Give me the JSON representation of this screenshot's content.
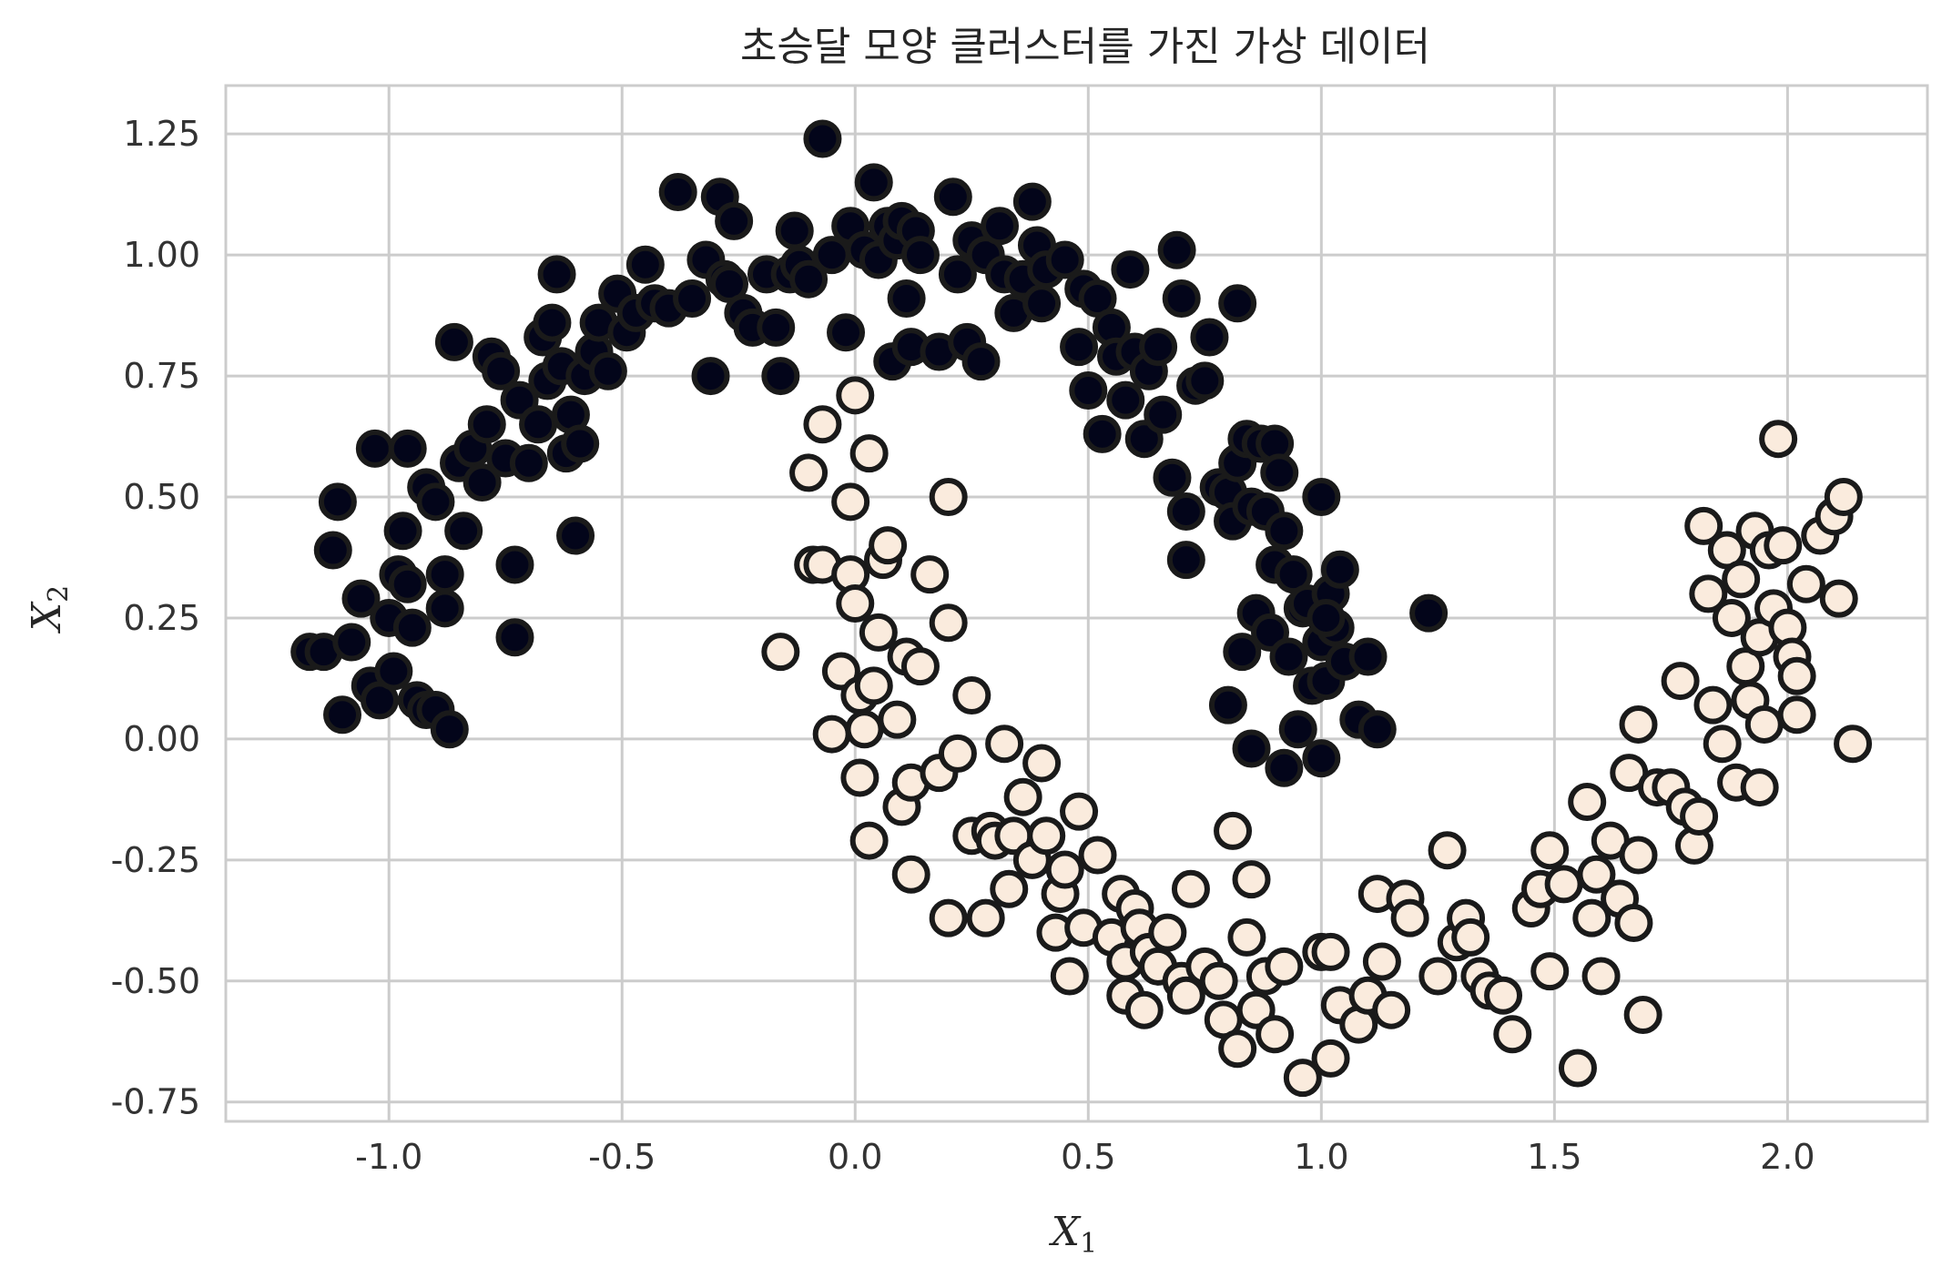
{
  "chart_data": {
    "type": "scatter",
    "title": "초승달 모양 클러스터를 가진 가상 데이터",
    "xlabel": "X",
    "xlabel_sub": "1",
    "ylabel": "X",
    "ylabel_sub": "2",
    "xlim": [
      -1.35,
      2.3
    ],
    "ylim": [
      -0.79,
      1.35
    ],
    "xticks": [
      -1.0,
      -0.5,
      0.0,
      0.5,
      1.0,
      1.5,
      2.0
    ],
    "xtick_labels": [
      "-1.0",
      "-0.5",
      "0.0",
      "0.5",
      "1.0",
      "1.5",
      "2.0"
    ],
    "yticks": [
      -0.75,
      -0.5,
      -0.25,
      0.0,
      0.25,
      0.5,
      0.75,
      1.0,
      1.25
    ],
    "ytick_labels": [
      "-0.75",
      "-0.50",
      "-0.25",
      "0.00",
      "0.25",
      "0.50",
      "0.75",
      "1.00",
      "1.25"
    ],
    "grid": true,
    "colors": {
      "class0_fill": "#03051a",
      "class1_fill": "#faebdd",
      "marker_edge": "#1a1a1a",
      "grid": "#cccccc",
      "spine": "#cccccc"
    },
    "series": [
      {
        "class": 0,
        "points": [
          [
            -1.17,
            0.18
          ],
          [
            -1.14,
            0.18
          ],
          [
            -1.11,
            0.49
          ],
          [
            -1.12,
            0.39
          ],
          [
            -1.1,
            0.05
          ],
          [
            -1.08,
            0.2
          ],
          [
            -1.06,
            0.29
          ],
          [
            -1.04,
            0.11
          ],
          [
            -1.02,
            0.08
          ],
          [
            -1.0,
            0.25
          ],
          [
            -0.99,
            0.14
          ],
          [
            -0.98,
            0.34
          ],
          [
            -0.97,
            0.43
          ],
          [
            -0.96,
            0.32
          ],
          [
            -0.95,
            0.23
          ],
          [
            -0.94,
            0.08
          ],
          [
            -0.92,
            0.06
          ],
          [
            -0.9,
            0.06
          ],
          [
            -0.88,
            0.27
          ],
          [
            -0.87,
            0.02
          ],
          [
            -1.03,
            0.6
          ],
          [
            -0.96,
            0.6
          ],
          [
            -0.92,
            0.52
          ],
          [
            -0.9,
            0.49
          ],
          [
            -0.88,
            0.34
          ],
          [
            -0.86,
            0.82
          ],
          [
            -0.85,
            0.57
          ],
          [
            -0.84,
            0.43
          ],
          [
            -0.82,
            0.6
          ],
          [
            -0.8,
            0.53
          ],
          [
            -0.79,
            0.65
          ],
          [
            -0.78,
            0.79
          ],
          [
            -0.76,
            0.76
          ],
          [
            -0.75,
            0.58
          ],
          [
            -0.73,
            0.36
          ],
          [
            -0.73,
            0.21
          ],
          [
            -0.72,
            0.7
          ],
          [
            -0.7,
            0.57
          ],
          [
            -0.68,
            0.65
          ],
          [
            -0.67,
            0.83
          ],
          [
            -0.66,
            0.74
          ],
          [
            -0.65,
            0.86
          ],
          [
            -0.64,
            0.96
          ],
          [
            -0.63,
            0.77
          ],
          [
            -0.62,
            0.59
          ],
          [
            -0.61,
            0.67
          ],
          [
            -0.6,
            0.42
          ],
          [
            -0.59,
            0.61
          ],
          [
            -0.58,
            0.75
          ],
          [
            -0.56,
            0.8
          ],
          [
            -0.55,
            0.86
          ],
          [
            -0.53,
            0.76
          ],
          [
            -0.51,
            0.92
          ],
          [
            -0.49,
            0.84
          ],
          [
            -0.47,
            0.88
          ],
          [
            -0.45,
            0.98
          ],
          [
            -0.43,
            0.9
          ],
          [
            -0.4,
            0.89
          ],
          [
            -0.38,
            1.13
          ],
          [
            -0.35,
            0.91
          ],
          [
            -0.32,
            0.99
          ],
          [
            -0.31,
            0.75
          ],
          [
            -0.29,
            1.12
          ],
          [
            -0.28,
            0.95
          ],
          [
            -0.27,
            0.94
          ],
          [
            -0.26,
            1.07
          ],
          [
            -0.24,
            0.88
          ],
          [
            -0.22,
            0.85
          ],
          [
            -0.19,
            0.96
          ],
          [
            -0.17,
            0.85
          ],
          [
            -0.16,
            0.75
          ],
          [
            -0.14,
            0.96
          ],
          [
            -0.13,
            1.05
          ],
          [
            -0.12,
            0.98
          ],
          [
            -0.1,
            0.95
          ],
          [
            -0.07,
            1.24
          ],
          [
            -0.05,
            1.0
          ],
          [
            -0.02,
            0.84
          ],
          [
            -0.01,
            1.06
          ],
          [
            0.02,
            1.01
          ],
          [
            0.04,
            1.15
          ],
          [
            0.05,
            0.99
          ],
          [
            0.07,
            1.06
          ],
          [
            0.08,
            0.78
          ],
          [
            0.09,
            1.03
          ],
          [
            0.1,
            1.07
          ],
          [
            0.11,
            0.91
          ],
          [
            0.12,
            0.81
          ],
          [
            0.13,
            1.05
          ],
          [
            0.14,
            1.0
          ],
          [
            0.18,
            0.8
          ],
          [
            0.21,
            1.12
          ],
          [
            0.22,
            0.96
          ],
          [
            0.24,
            0.82
          ],
          [
            0.25,
            1.03
          ],
          [
            0.27,
            0.78
          ],
          [
            0.28,
            1.0
          ],
          [
            0.31,
            1.06
          ],
          [
            0.32,
            0.96
          ],
          [
            0.34,
            0.88
          ],
          [
            0.36,
            0.95
          ],
          [
            0.38,
            1.11
          ],
          [
            0.39,
            1.02
          ],
          [
            0.4,
            0.9
          ],
          [
            0.41,
            0.97
          ],
          [
            0.45,
            0.99
          ],
          [
            0.48,
            0.81
          ],
          [
            0.49,
            0.93
          ],
          [
            0.5,
            0.72
          ],
          [
            0.52,
            0.91
          ],
          [
            0.53,
            0.63
          ],
          [
            0.55,
            0.85
          ],
          [
            0.56,
            0.79
          ],
          [
            0.58,
            0.7
          ],
          [
            0.59,
            0.97
          ],
          [
            0.6,
            0.8
          ],
          [
            0.62,
            0.62
          ],
          [
            0.63,
            0.76
          ],
          [
            0.65,
            0.81
          ],
          [
            0.66,
            0.67
          ],
          [
            0.68,
            0.54
          ],
          [
            0.69,
            1.01
          ],
          [
            0.7,
            0.91
          ],
          [
            0.71,
            0.47
          ],
          [
            0.71,
            0.37
          ],
          [
            0.73,
            0.73
          ],
          [
            0.75,
            0.74
          ],
          [
            0.76,
            0.83
          ],
          [
            0.78,
            0.52
          ],
          [
            0.8,
            0.51
          ],
          [
            0.81,
            0.45
          ],
          [
            0.82,
            0.9
          ],
          [
            0.82,
            0.57
          ],
          [
            0.83,
            0.18
          ],
          [
            0.84,
            0.62
          ],
          [
            0.85,
            0.48
          ],
          [
            0.85,
            -0.02
          ],
          [
            0.86,
            0.26
          ],
          [
            0.87,
            0.61
          ],
          [
            0.88,
            0.47
          ],
          [
            0.89,
            0.22
          ],
          [
            0.9,
            0.36
          ],
          [
            0.9,
            0.61
          ],
          [
            0.91,
            0.55
          ],
          [
            0.92,
            0.43
          ],
          [
            0.93,
            0.17
          ],
          [
            0.94,
            0.34
          ],
          [
            0.95,
            0.02
          ],
          [
            0.96,
            0.27
          ],
          [
            0.97,
            0.28
          ],
          [
            0.98,
            0.11
          ],
          [
            1.0,
            0.2
          ],
          [
            1.0,
            0.5
          ],
          [
            1.01,
            0.12
          ],
          [
            1.02,
            0.3
          ],
          [
            1.03,
            0.23
          ],
          [
            1.04,
            0.35
          ],
          [
            1.05,
            0.16
          ],
          [
            1.08,
            0.04
          ],
          [
            1.1,
            0.17
          ],
          [
            1.12,
            0.02
          ],
          [
            1.23,
            0.26
          ],
          [
            0.92,
            -0.06
          ],
          [
            1.0,
            -0.04
          ],
          [
            0.8,
            0.07
          ],
          [
            1.01,
            0.25
          ]
        ]
      },
      {
        "class": 1,
        "points": [
          [
            -0.16,
            0.18
          ],
          [
            -0.1,
            0.55
          ],
          [
            -0.09,
            0.36
          ],
          [
            -0.07,
            0.65
          ],
          [
            -0.07,
            0.36
          ],
          [
            -0.05,
            0.01
          ],
          [
            -0.03,
            0.14
          ],
          [
            -0.01,
            0.49
          ],
          [
            -0.01,
            0.34
          ],
          [
            0.0,
            0.71
          ],
          [
            0.0,
            0.28
          ],
          [
            0.01,
            0.09
          ],
          [
            0.01,
            -0.08
          ],
          [
            0.02,
            0.02
          ],
          [
            0.03,
            0.59
          ],
          [
            0.03,
            -0.21
          ],
          [
            0.04,
            0.11
          ],
          [
            0.05,
            0.22
          ],
          [
            0.06,
            0.37
          ],
          [
            0.07,
            0.4
          ],
          [
            0.09,
            0.04
          ],
          [
            0.1,
            -0.14
          ],
          [
            0.11,
            0.17
          ],
          [
            0.12,
            -0.09
          ],
          [
            0.12,
            -0.28
          ],
          [
            0.14,
            0.15
          ],
          [
            0.16,
            0.34
          ],
          [
            0.18,
            -0.07
          ],
          [
            0.2,
            0.24
          ],
          [
            0.2,
            0.5
          ],
          [
            0.2,
            -0.37
          ],
          [
            0.22,
            -0.03
          ],
          [
            0.25,
            0.09
          ],
          [
            0.25,
            -0.2
          ],
          [
            0.28,
            -0.37
          ],
          [
            0.29,
            -0.19
          ],
          [
            0.3,
            -0.21
          ],
          [
            0.32,
            -0.01
          ],
          [
            0.33,
            -0.31
          ],
          [
            0.34,
            -0.2
          ],
          [
            0.36,
            -0.12
          ],
          [
            0.38,
            -0.25
          ],
          [
            0.4,
            -0.05
          ],
          [
            0.41,
            -0.2
          ],
          [
            0.43,
            -0.4
          ],
          [
            0.44,
            -0.32
          ],
          [
            0.45,
            -0.27
          ],
          [
            0.46,
            -0.49
          ],
          [
            0.48,
            -0.15
          ],
          [
            0.49,
            -0.39
          ],
          [
            0.52,
            -0.24
          ],
          [
            0.55,
            -0.41
          ],
          [
            0.57,
            -0.32
          ],
          [
            0.58,
            -0.46
          ],
          [
            0.58,
            -0.53
          ],
          [
            0.6,
            -0.35
          ],
          [
            0.61,
            -0.39
          ],
          [
            0.62,
            -0.56
          ],
          [
            0.63,
            -0.44
          ],
          [
            0.65,
            -0.47
          ],
          [
            0.67,
            -0.4
          ],
          [
            0.7,
            -0.5
          ],
          [
            0.71,
            -0.53
          ],
          [
            0.72,
            -0.31
          ],
          [
            0.75,
            -0.47
          ],
          [
            0.78,
            -0.5
          ],
          [
            0.79,
            -0.58
          ],
          [
            0.81,
            -0.19
          ],
          [
            0.82,
            -0.64
          ],
          [
            0.84,
            -0.41
          ],
          [
            0.85,
            -0.29
          ],
          [
            0.86,
            -0.56
          ],
          [
            0.88,
            -0.49
          ],
          [
            0.9,
            -0.61
          ],
          [
            0.92,
            -0.47
          ],
          [
            0.96,
            -0.7
          ],
          [
            1.0,
            -0.44
          ],
          [
            1.02,
            -0.66
          ],
          [
            1.02,
            -0.44
          ],
          [
            1.04,
            -0.55
          ],
          [
            1.08,
            -0.59
          ],
          [
            1.1,
            -0.53
          ],
          [
            1.12,
            -0.32
          ],
          [
            1.13,
            -0.46
          ],
          [
            1.15,
            -0.56
          ],
          [
            1.18,
            -0.33
          ],
          [
            1.19,
            -0.37
          ],
          [
            1.25,
            -0.49
          ],
          [
            1.27,
            -0.23
          ],
          [
            1.29,
            -0.42
          ],
          [
            1.31,
            -0.37
          ],
          [
            1.32,
            -0.41
          ],
          [
            1.34,
            -0.49
          ],
          [
            1.36,
            -0.52
          ],
          [
            1.39,
            -0.53
          ],
          [
            1.41,
            -0.61
          ],
          [
            1.45,
            -0.35
          ],
          [
            1.47,
            -0.31
          ],
          [
            1.49,
            -0.48
          ],
          [
            1.49,
            -0.23
          ],
          [
            1.52,
            -0.3
          ],
          [
            1.55,
            -0.68
          ],
          [
            1.57,
            -0.13
          ],
          [
            1.58,
            -0.37
          ],
          [
            1.59,
            -0.28
          ],
          [
            1.6,
            -0.49
          ],
          [
            1.62,
            -0.21
          ],
          [
            1.64,
            -0.33
          ],
          [
            1.66,
            -0.07
          ],
          [
            1.67,
            -0.38
          ],
          [
            1.68,
            -0.24
          ],
          [
            1.68,
            0.03
          ],
          [
            1.69,
            -0.57
          ],
          [
            1.72,
            -0.1
          ],
          [
            1.75,
            -0.1
          ],
          [
            1.77,
            0.12
          ],
          [
            1.78,
            -0.14
          ],
          [
            1.8,
            -0.22
          ],
          [
            1.81,
            -0.16
          ],
          [
            1.82,
            0.44
          ],
          [
            1.83,
            0.3
          ],
          [
            1.84,
            0.07
          ],
          [
            1.86,
            -0.01
          ],
          [
            1.87,
            0.39
          ],
          [
            1.88,
            0.25
          ],
          [
            1.89,
            -0.09
          ],
          [
            1.9,
            0.33
          ],
          [
            1.91,
            0.15
          ],
          [
            1.92,
            0.08
          ],
          [
            1.93,
            0.43
          ],
          [
            1.94,
            0.21
          ],
          [
            1.95,
            0.03
          ],
          [
            1.96,
            0.39
          ],
          [
            1.97,
            0.27
          ],
          [
            1.98,
            0.62
          ],
          [
            1.99,
            0.4
          ],
          [
            2.0,
            0.23
          ],
          [
            2.01,
            0.17
          ],
          [
            2.02,
            0.13
          ],
          [
            2.02,
            0.05
          ],
          [
            2.04,
            0.32
          ],
          [
            2.07,
            0.42
          ],
          [
            2.1,
            0.46
          ],
          [
            2.11,
            0.29
          ],
          [
            2.12,
            0.5
          ],
          [
            2.14,
            -0.01
          ],
          [
            1.94,
            -0.1
          ]
        ]
      }
    ]
  }
}
